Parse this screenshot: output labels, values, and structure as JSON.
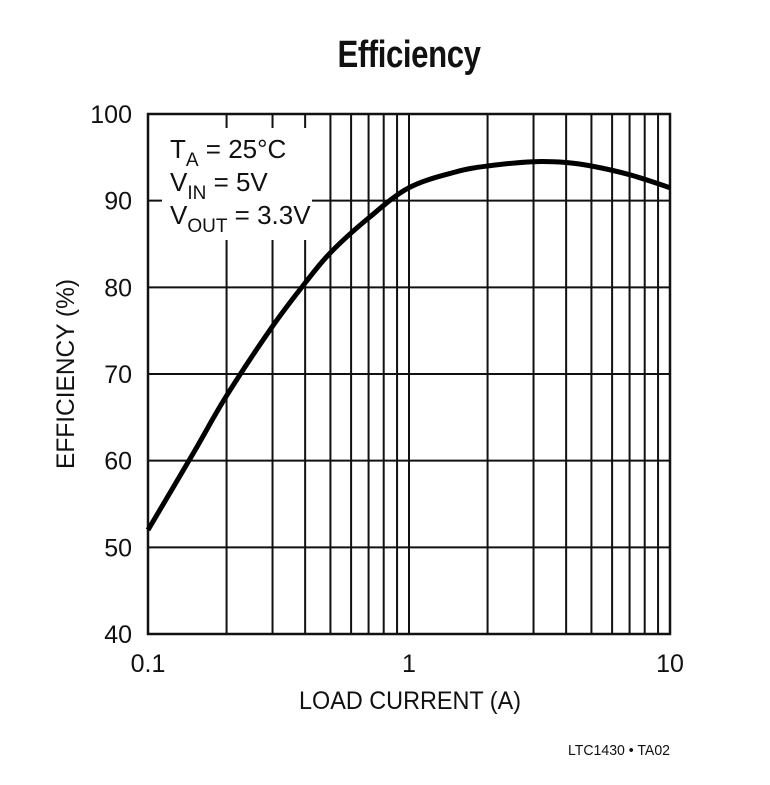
{
  "chart_data": {
    "type": "line",
    "title": "Efficiency",
    "xlabel": "LOAD CURRENT (A)",
    "ylabel": "EFFICIENCY (%)",
    "xscale": "log",
    "xlim": [
      0.1,
      10
    ],
    "ylim": [
      40,
      100
    ],
    "x_ticks": [
      "0.1",
      "1",
      "10"
    ],
    "y_ticks": [
      "40",
      "50",
      "60",
      "70",
      "80",
      "90",
      "100"
    ],
    "grid": true,
    "annotations": [
      {
        "main": "T",
        "sub": "A",
        "rest": " = 25°C"
      },
      {
        "main": "V",
        "sub": "IN",
        "rest": " = 5V"
      },
      {
        "main": "V",
        "sub": "OUT",
        "rest": " = 3.3V"
      }
    ],
    "series": [
      {
        "name": "Efficiency",
        "x": [
          0.1,
          0.15,
          0.2,
          0.3,
          0.4,
          0.5,
          0.7,
          1,
          1.5,
          2,
          3,
          4,
          5,
          7,
          10
        ],
        "values": [
          52,
          61,
          67.5,
          75.5,
          80.5,
          84,
          88,
          91.5,
          93.3,
          94,
          94.5,
          94.4,
          94,
          93,
          91.5
        ]
      }
    ],
    "footer": "LTC1430 • TA02"
  }
}
